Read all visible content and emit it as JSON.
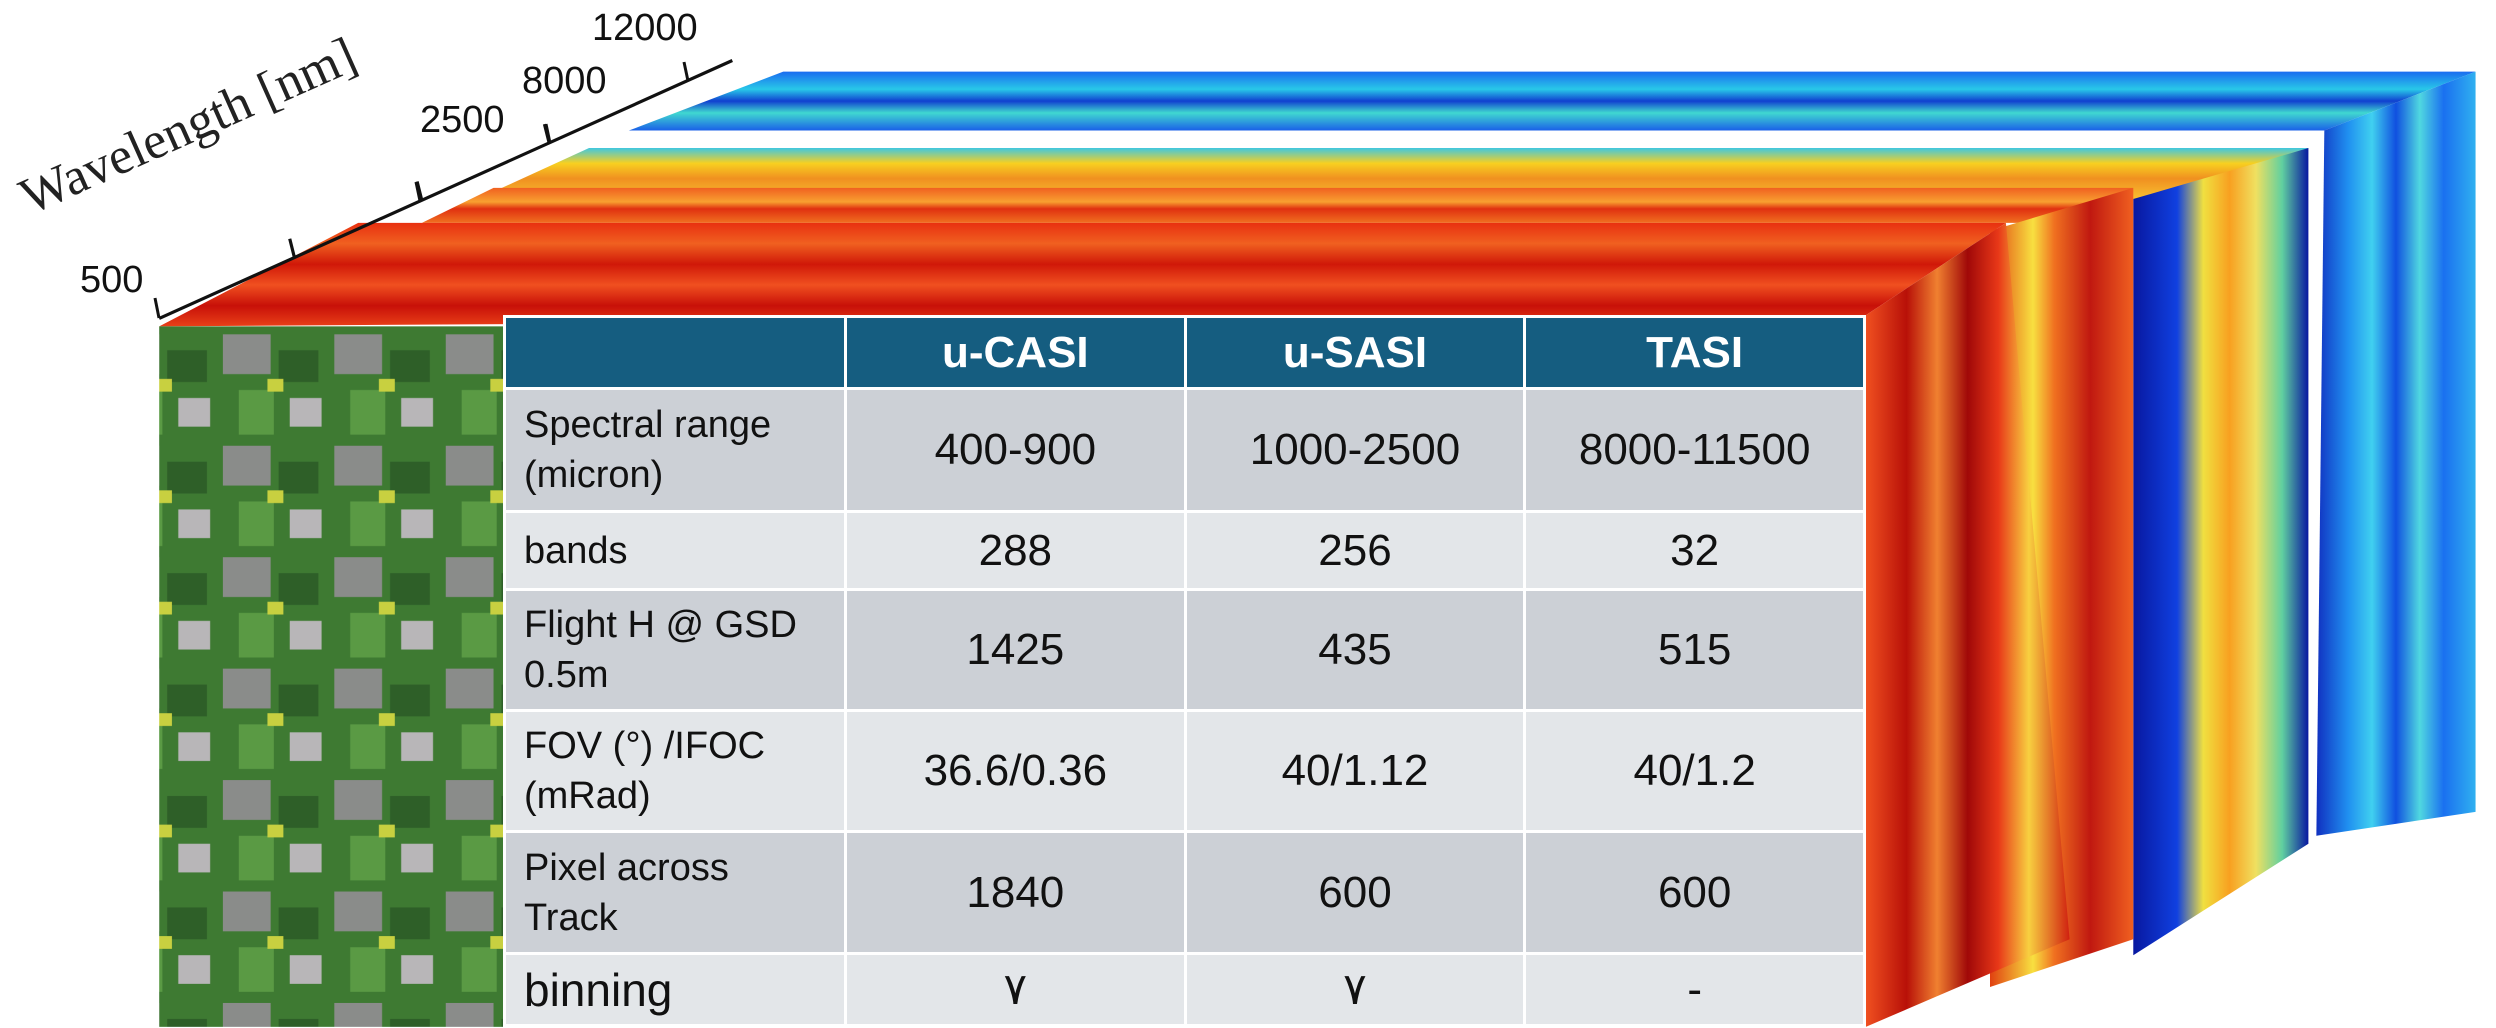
{
  "axis": {
    "title": "Wavelength [nm]",
    "ticks": [
      500,
      2500,
      8000,
      12000
    ]
  },
  "table": {
    "header": [
      "u-CASI",
      "u-SASI",
      "TASI"
    ],
    "rows": [
      [
        "Spectral range (micron)",
        "400-900",
        "1000-2500",
        "8000-11500"
      ],
      [
        "bands",
        "288",
        "256",
        "32"
      ],
      [
        "Flight H @ GSD 0.5m",
        "1425",
        "435",
        "515"
      ],
      [
        "FOV (°) /IFOC (mRad)",
        "36.6/0.36",
        "40/1.12",
        "40/1.2"
      ],
      [
        "Pixel across Track",
        "1840",
        "600",
        "600"
      ],
      [
        "binning",
        "٧",
        "٧",
        "-"
      ]
    ]
  }
}
